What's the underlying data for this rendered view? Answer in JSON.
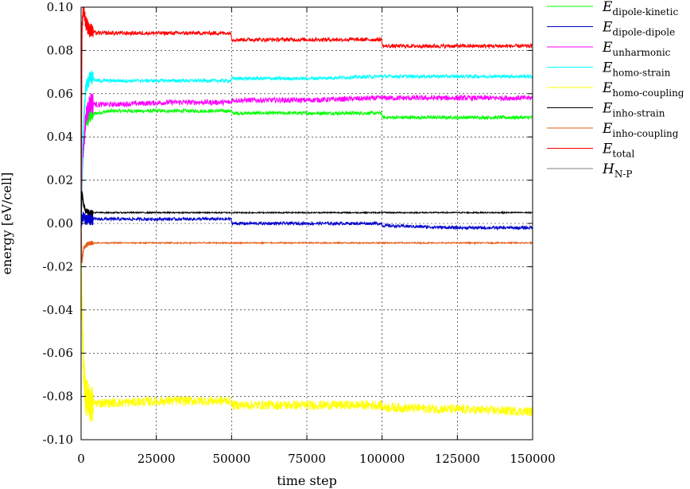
{
  "chart_data": {
    "type": "line",
    "title": "",
    "xlabel": "time step",
    "ylabel": "energy [eV/cell]",
    "xlim": [
      0,
      150000
    ],
    "ylim": [
      -0.1,
      0.1
    ],
    "x_ticks": [
      0,
      25000,
      50000,
      75000,
      100000,
      125000,
      150000
    ],
    "x_tick_labels": [
      "0",
      "25000",
      "50000",
      "75000",
      "100000",
      "125000",
      "150000"
    ],
    "y_ticks": [
      -0.1,
      -0.08,
      -0.06,
      -0.04,
      -0.02,
      0.0,
      0.02,
      0.04,
      0.06,
      0.08,
      0.1
    ],
    "y_tick_labels": [
      "-0.10",
      "-0.08",
      "-0.06",
      "-0.04",
      "-0.02",
      "0.00",
      "0.02",
      "0.04",
      "0.06",
      "0.08",
      "0.10"
    ],
    "grid": true,
    "legend_position": "outside-right-top",
    "series": [
      {
        "name_main": "E",
        "name_sub": "dipole-kinetic",
        "color": "#00ff00",
        "x": [
          0,
          500,
          1500,
          3000,
          5000,
          10000,
          20000,
          30000,
          40000,
          49900,
          50100,
          60000,
          75000,
          90000,
          99900,
          100100,
          110000,
          125000,
          140000,
          150000
        ],
        "y": [
          0.0,
          0.03,
          0.046,
          0.05,
          0.051,
          0.052,
          0.052,
          0.052,
          0.052,
          0.052,
          0.051,
          0.051,
          0.051,
          0.051,
          0.051,
          0.049,
          0.049,
          0.049,
          0.049,
          0.049
        ],
        "noise": 0.0008
      },
      {
        "name_main": "E",
        "name_sub": "dipole-dipole",
        "color": "#0000cc",
        "x": [
          0,
          500,
          1500,
          3000,
          10000,
          30000,
          49900,
          50100,
          75000,
          99900,
          100100,
          125000,
          150000
        ],
        "y": [
          0.0,
          0.003,
          0.002,
          0.002,
          0.002,
          0.002,
          0.002,
          0.0,
          0.0,
          0.0,
          -0.001,
          -0.002,
          -0.002
        ],
        "noise": 0.0007
      },
      {
        "name_main": "E",
        "name_sub": "unharmonic",
        "color": "#ff00ff",
        "x": [
          0,
          500,
          1500,
          3000,
          5000,
          10000,
          30000,
          49900,
          50100,
          75000,
          99900,
          100100,
          125000,
          150000
        ],
        "y": [
          0.0,
          0.03,
          0.048,
          0.056,
          0.055,
          0.055,
          0.056,
          0.056,
          0.057,
          0.057,
          0.058,
          0.058,
          0.058,
          0.058
        ],
        "noise": 0.0012
      },
      {
        "name_main": "E",
        "name_sub": "homo-strain",
        "color": "#00ffff",
        "x": [
          0,
          500,
          1500,
          3000,
          5000,
          10000,
          30000,
          49900,
          50100,
          75000,
          99900,
          100100,
          125000,
          150000
        ],
        "y": [
          0.0,
          0.04,
          0.062,
          0.068,
          0.066,
          0.066,
          0.066,
          0.066,
          0.067,
          0.067,
          0.068,
          0.068,
          0.068,
          0.068
        ],
        "noise": 0.0008
      },
      {
        "name_main": "E",
        "name_sub": "homo-coupling",
        "color": "#ffff00",
        "x": [
          0,
          300,
          800,
          1500,
          3000,
          5000,
          10000,
          30000,
          49900,
          50100,
          75000,
          99900,
          100100,
          125000,
          150000
        ],
        "y": [
          0.0,
          -0.04,
          -0.065,
          -0.08,
          -0.083,
          -0.083,
          -0.083,
          -0.082,
          -0.082,
          -0.084,
          -0.084,
          -0.084,
          -0.085,
          -0.086,
          -0.087
        ],
        "noise": 0.0022
      },
      {
        "name_main": "E",
        "name_sub": "inho-strain",
        "color": "#000000",
        "x": [
          0,
          300,
          800,
          1500,
          3000,
          5000,
          150000
        ],
        "y": [
          0.0,
          0.015,
          0.009,
          0.006,
          0.005,
          0.005,
          0.005
        ],
        "noise": 0.0003
      },
      {
        "name_main": "E",
        "name_sub": "inho-coupling",
        "color": "#e65c1a",
        "x": [
          0,
          300,
          800,
          1500,
          3000,
          5000,
          150000
        ],
        "y": [
          0.0,
          -0.018,
          -0.012,
          -0.01,
          -0.009,
          -0.009,
          -0.009
        ],
        "noise": 0.0003
      },
      {
        "name_main": "E",
        "name_sub": "total",
        "color": "#ff0000",
        "x": [
          0,
          300,
          800,
          1500,
          3000,
          5000,
          10000,
          30000,
          49900,
          50100,
          75000,
          99900,
          100100,
          125000,
          150000
        ],
        "y": [
          0.0,
          0.09,
          0.1,
          0.093,
          0.089,
          0.088,
          0.088,
          0.088,
          0.088,
          0.085,
          0.085,
          0.085,
          0.082,
          0.082,
          0.082
        ],
        "noise": 0.0009
      },
      {
        "name_main": "H",
        "name_sub": "N-P",
        "color": "#808080",
        "x": [
          0,
          150000
        ],
        "y": [
          0.0,
          0.0
        ],
        "noise": 0.0,
        "hidden": true
      }
    ]
  }
}
